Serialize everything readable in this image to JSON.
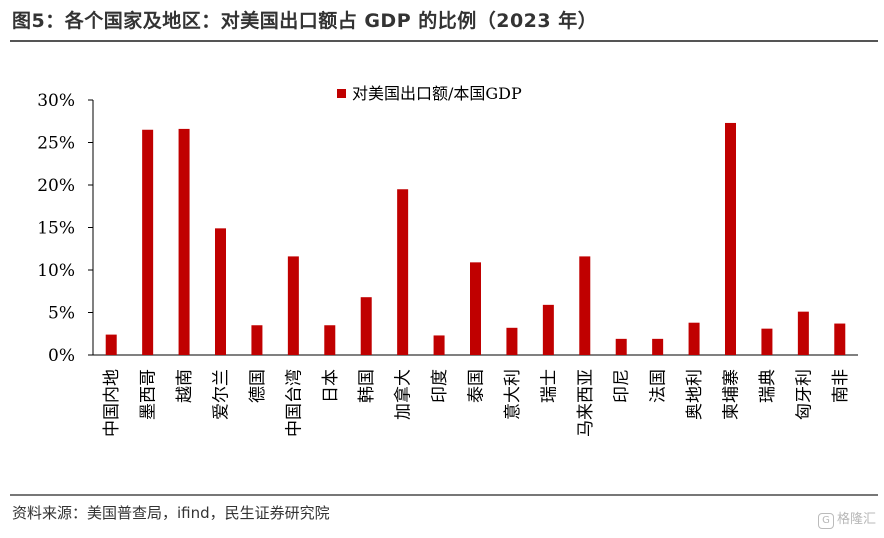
{
  "figure": {
    "title": "图5：各个国家及地区：对美国出口额占 GDP 的比例（2023 年）",
    "source": "资料来源：美国普查局，ifind，民生证券研究院",
    "watermark": "格隆汇",
    "watermark_badge": "G"
  },
  "colors": {
    "bar": "#c00000",
    "axis": "#000000",
    "rule": "#555555"
  },
  "chart_data": {
    "type": "bar",
    "categories": [
      "中国内地",
      "墨西哥",
      "越南",
      "爱尔兰",
      "德国",
      "中国台湾",
      "日本",
      "韩国",
      "加拿大",
      "印度",
      "泰国",
      "意大利",
      "瑞士",
      "马来西亚",
      "印尼",
      "法国",
      "奥地利",
      "柬埔寨",
      "瑞典",
      "匈牙利",
      "南非"
    ],
    "series": [
      {
        "name": "对美国出口额/本国GDP",
        "values": [
          2.4,
          26.5,
          26.6,
          14.9,
          3.5,
          11.6,
          3.5,
          6.8,
          19.5,
          2.3,
          10.9,
          3.2,
          5.9,
          11.6,
          1.9,
          1.9,
          3.8,
          27.3,
          3.1,
          5.1,
          3.7
        ]
      }
    ],
    "yticks": [
      "0%",
      "5%",
      "10%",
      "15%",
      "20%",
      "25%",
      "30%"
    ],
    "ylim": [
      0,
      30
    ],
    "value_unit": "%",
    "legend_position": "top-center",
    "grid": false
  }
}
